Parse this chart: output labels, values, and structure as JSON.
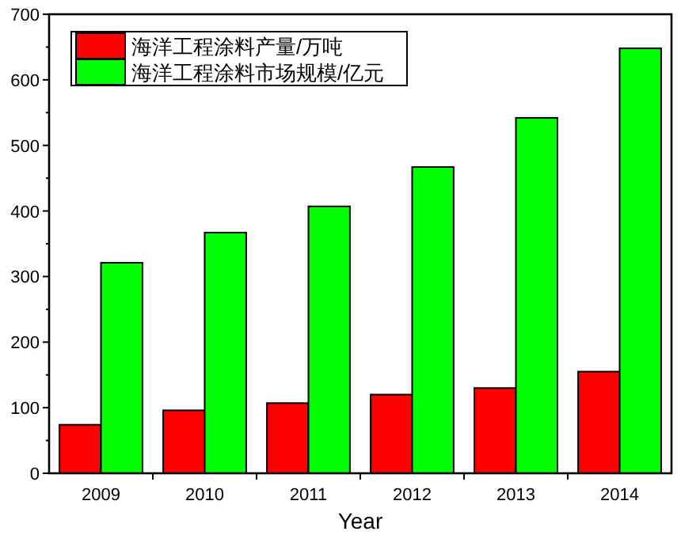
{
  "chart_data": {
    "type": "bar",
    "xlabel": "Year",
    "categories": [
      "2009",
      "2010",
      "2011",
      "2012",
      "2013",
      "2014"
    ],
    "series": [
      {
        "name": "海洋工程涂料产量/万吨",
        "color": "#ff0000",
        "values": [
          74,
          96,
          107,
          120,
          130,
          155
        ]
      },
      {
        "name": "海洋工程涂料市场规模/亿元",
        "color": "#00ff00",
        "values": [
          321,
          367,
          407,
          467,
          542,
          648
        ]
      }
    ],
    "ylim": [
      0,
      700
    ],
    "yticks": [
      0,
      100,
      200,
      300,
      400,
      500,
      600,
      700
    ],
    "legend": "top left",
    "grid": false
  }
}
